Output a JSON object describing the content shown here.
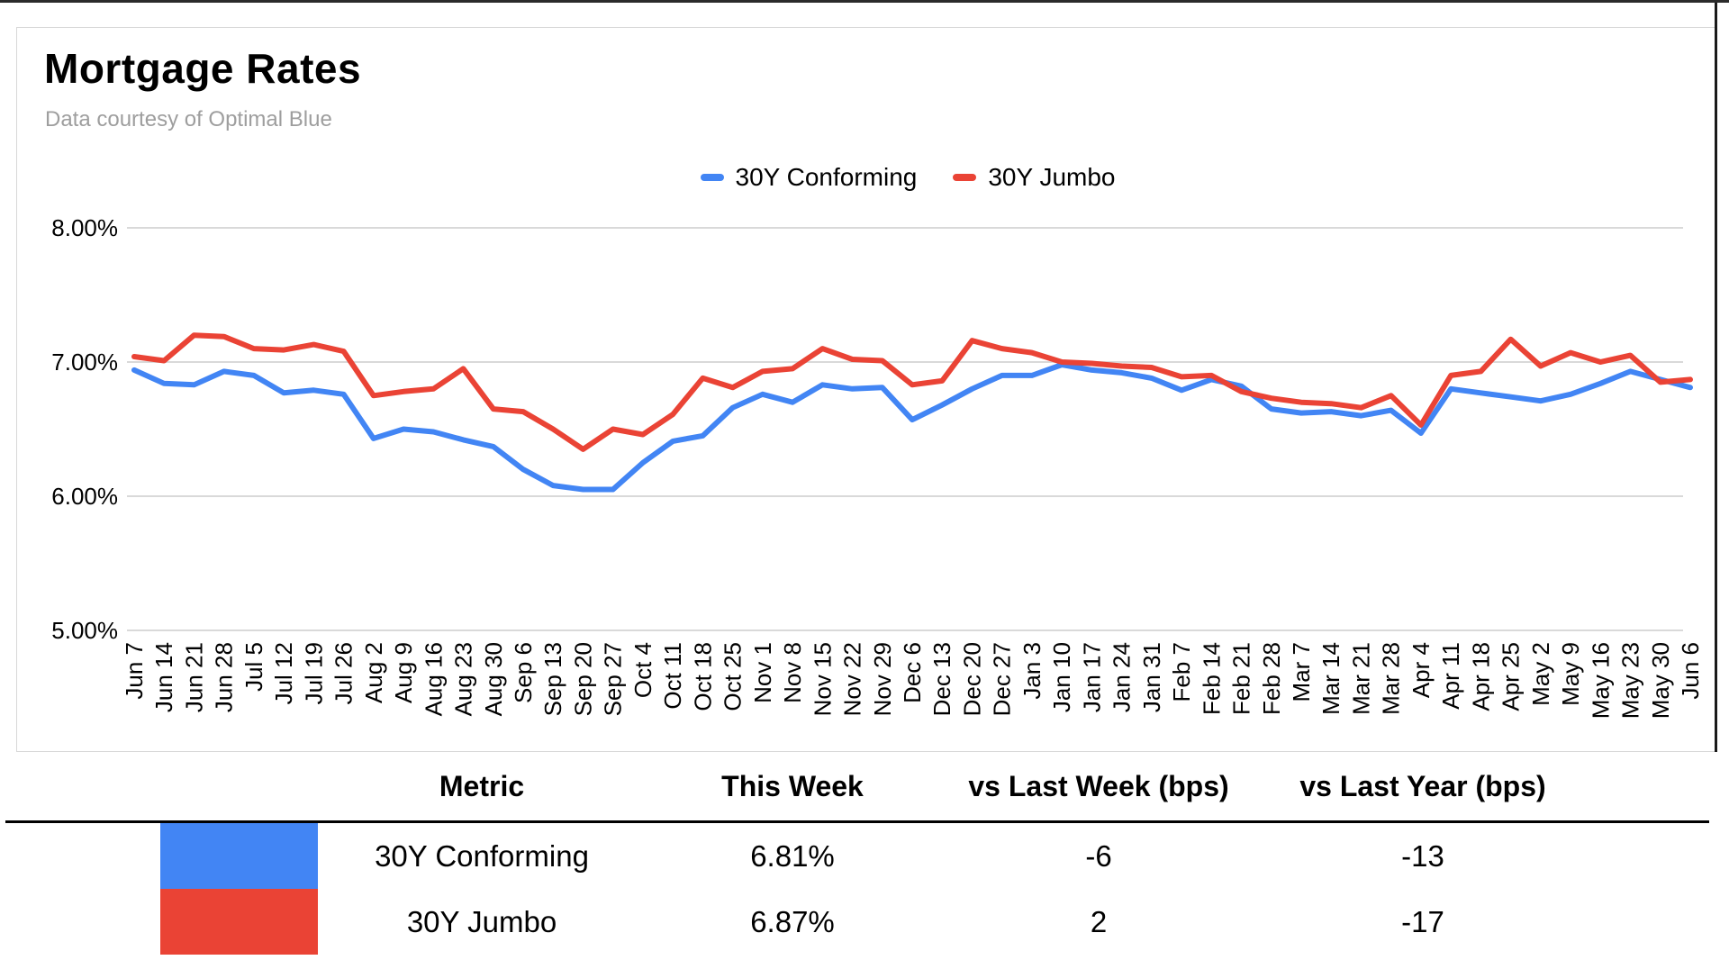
{
  "header": {
    "title": "Mortgage Rates",
    "subtitle": "Data courtesy of Optimal Blue"
  },
  "colors": {
    "conforming_blue": "#4285f4",
    "jumbo_red": "#ea4335",
    "grid_gray": "#d9d9d9",
    "subtitle_gray": "#9e9e9e"
  },
  "chart_data": {
    "type": "line",
    "title": "Mortgage Rates",
    "xlabel": "",
    "ylabel": "",
    "ylim": [
      5,
      8
    ],
    "grid": true,
    "legend_position": "top-center",
    "y_ticks": [
      {
        "value": 8,
        "label": "8.00%"
      },
      {
        "value": 7,
        "label": "7.00%"
      },
      {
        "value": 6,
        "label": "6.00%"
      },
      {
        "value": 5,
        "label": "5.00%"
      }
    ],
    "categories": [
      "Jun 7",
      "Jun 14",
      "Jun 21",
      "Jun 28",
      "Jul 5",
      "Jul 12",
      "Jul 19",
      "Jul 26",
      "Aug 2",
      "Aug 9",
      "Aug 16",
      "Aug 23",
      "Aug 30",
      "Sep 6",
      "Sep 13",
      "Sep 20",
      "Sep 27",
      "Oct 4",
      "Oct 11",
      "Oct 18",
      "Oct 25",
      "Nov 1",
      "Nov 8",
      "Nov 15",
      "Nov 22",
      "Nov 29",
      "Dec 6",
      "Dec 13",
      "Dec 20",
      "Dec 27",
      "Jan 3",
      "Jan 10",
      "Jan 17",
      "Jan 24",
      "Jan 31",
      "Feb 7",
      "Feb 14",
      "Feb 21",
      "Feb 28",
      "Mar 7",
      "Mar 14",
      "Mar 21",
      "Mar 28",
      "Apr 4",
      "Apr 11",
      "Apr 18",
      "Apr 25",
      "May 2",
      "May 9",
      "May 16",
      "May 23",
      "May 30",
      "Jun 6"
    ],
    "series": [
      {
        "name": "30Y Conforming",
        "color": "#4285f4",
        "values": [
          6.94,
          6.84,
          6.83,
          6.93,
          6.9,
          6.77,
          6.79,
          6.76,
          6.43,
          6.5,
          6.48,
          6.42,
          6.37,
          6.2,
          6.08,
          6.05,
          6.05,
          6.25,
          6.41,
          6.45,
          6.66,
          6.76,
          6.7,
          6.83,
          6.8,
          6.81,
          6.57,
          6.68,
          6.8,
          6.9,
          6.9,
          6.98,
          6.94,
          6.92,
          6.88,
          6.79,
          6.87,
          6.82,
          6.65,
          6.62,
          6.63,
          6.6,
          6.64,
          6.47,
          6.8,
          6.77,
          6.74,
          6.71,
          6.76,
          6.84,
          6.93,
          6.87,
          6.81
        ]
      },
      {
        "name": "30Y Jumbo",
        "color": "#ea4335",
        "values": [
          7.04,
          7.01,
          7.2,
          7.19,
          7.1,
          7.09,
          7.13,
          7.08,
          6.75,
          6.78,
          6.8,
          6.95,
          6.65,
          6.63,
          6.5,
          6.35,
          6.5,
          6.46,
          6.61,
          6.88,
          6.81,
          6.93,
          6.95,
          7.1,
          7.02,
          7.01,
          6.83,
          6.86,
          7.16,
          7.1,
          7.07,
          7.0,
          6.99,
          6.97,
          6.96,
          6.89,
          6.9,
          6.78,
          6.73,
          6.7,
          6.69,
          6.66,
          6.75,
          6.53,
          6.9,
          6.93,
          7.17,
          6.97,
          7.07,
          7.0,
          7.05,
          6.85,
          6.87
        ]
      }
    ]
  },
  "metrics_table": {
    "columns": [
      "Metric",
      "This Week",
      "vs Last Week (bps)",
      "vs Last Year (bps)"
    ],
    "rows": [
      {
        "metric": "30Y Conforming",
        "swatch_color": "#4285f4",
        "this_week": "6.81%",
        "vs_last_week": "-6",
        "vs_last_year": "-13"
      },
      {
        "metric": "30Y Jumbo",
        "swatch_color": "#ea4335",
        "this_week": "6.87%",
        "vs_last_week": "2",
        "vs_last_year": "-17"
      }
    ]
  }
}
